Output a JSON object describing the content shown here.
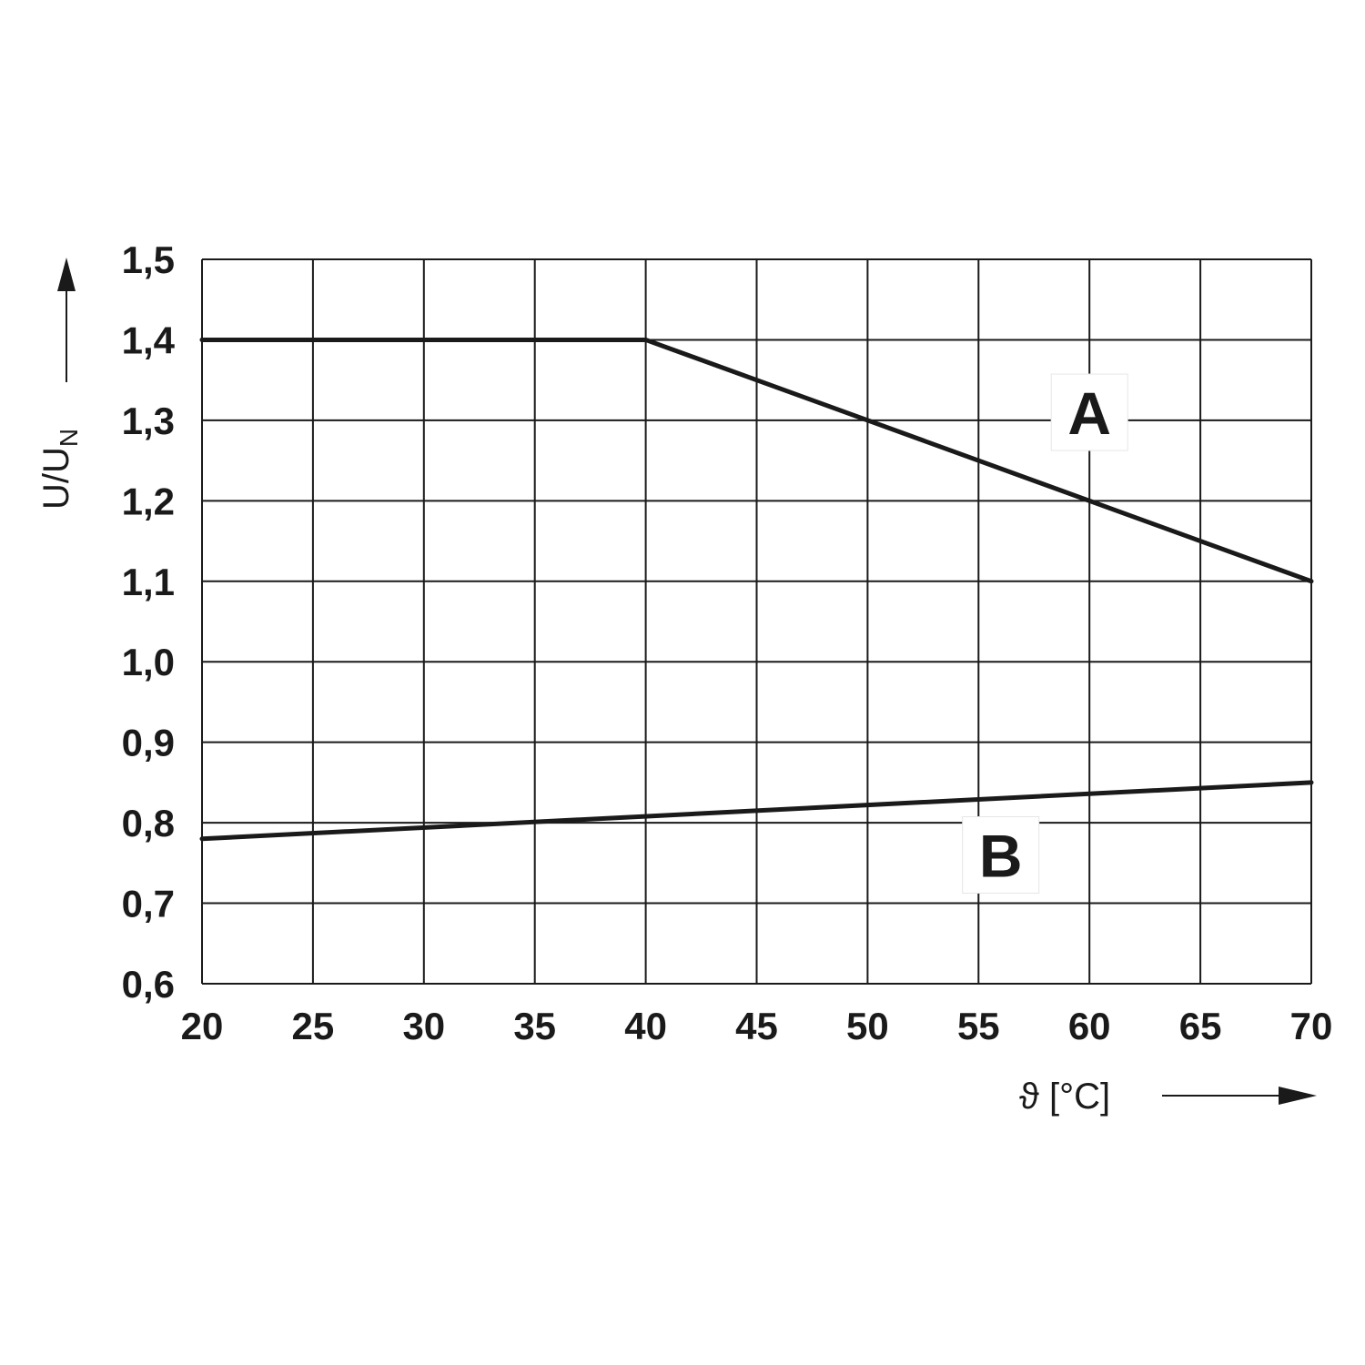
{
  "chart_data": {
    "type": "line",
    "xlabel": "ϑ [°C]",
    "ylabel": "U/U",
    "ylabel_sub": "N",
    "xlim": [
      20,
      70
    ],
    "ylim": [
      0.6,
      1.5
    ],
    "x_ticks": [
      20,
      25,
      30,
      35,
      40,
      45,
      50,
      55,
      60,
      65,
      70
    ],
    "y_ticks": [
      0.6,
      0.7,
      0.8,
      0.9,
      1.0,
      1.1,
      1.2,
      1.3,
      1.4,
      1.5
    ],
    "y_tick_labels": [
      "0,6",
      "0,7",
      "0,8",
      "0,9",
      "1,0",
      "1,1",
      "1,2",
      "1,3",
      "1,4",
      "1,5"
    ],
    "x_tick_labels": [
      "20",
      "25",
      "30",
      "35",
      "40",
      "45",
      "50",
      "55",
      "60",
      "65",
      "70"
    ],
    "grid": true,
    "line_color": "#1a1a1a",
    "series": [
      {
        "name": "A",
        "x": [
          20,
          40,
          70
        ],
        "y": [
          1.4,
          1.4,
          1.1
        ],
        "label_at": [
          60,
          1.31
        ]
      },
      {
        "name": "B",
        "x": [
          20,
          70
        ],
        "y": [
          0.78,
          0.85
        ],
        "label_at": [
          56,
          0.76
        ]
      }
    ]
  }
}
